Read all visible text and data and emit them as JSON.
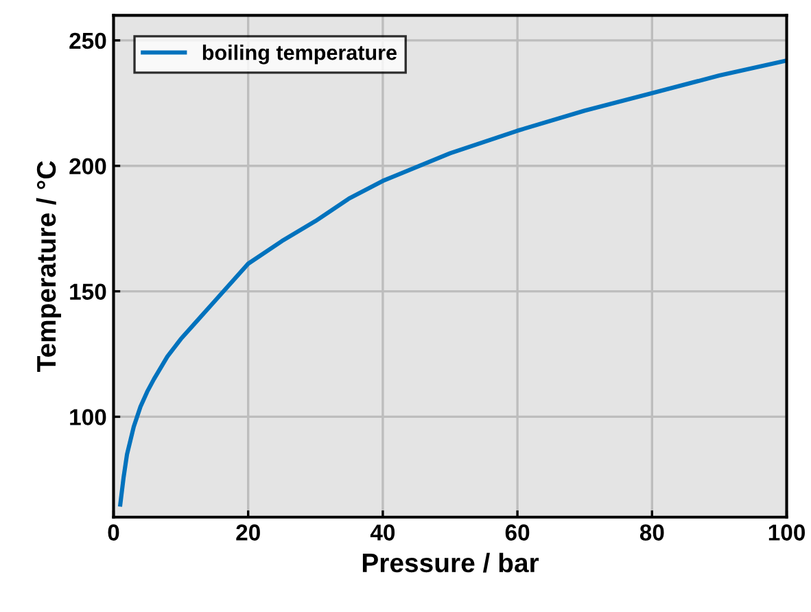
{
  "chart_data": {
    "type": "line",
    "xlabel": "Pressure / bar",
    "ylabel": "Temperature / °C",
    "x": [
      1,
      1.5,
      2,
      3,
      4,
      5,
      6,
      8,
      10,
      12,
      15,
      20,
      25,
      30,
      35,
      40,
      50,
      60,
      70,
      80,
      90,
      100
    ],
    "series": [
      {
        "name": "boiling temperature",
        "color": "#0072bd",
        "values": [
          65,
          76,
          85,
          96,
          104,
          110,
          115,
          124,
          131,
          137,
          146,
          161,
          170,
          178,
          187,
          194,
          205,
          214,
          222,
          229,
          236,
          242
        ]
      }
    ],
    "xlim": [
      0,
      100
    ],
    "ylim": [
      60,
      260
    ],
    "xticks": [
      0,
      20,
      40,
      60,
      80,
      100
    ],
    "yticks": [
      100,
      150,
      200,
      250
    ],
    "grid": true,
    "legend": "top left",
    "marker": "none",
    "line_style": "solid"
  }
}
